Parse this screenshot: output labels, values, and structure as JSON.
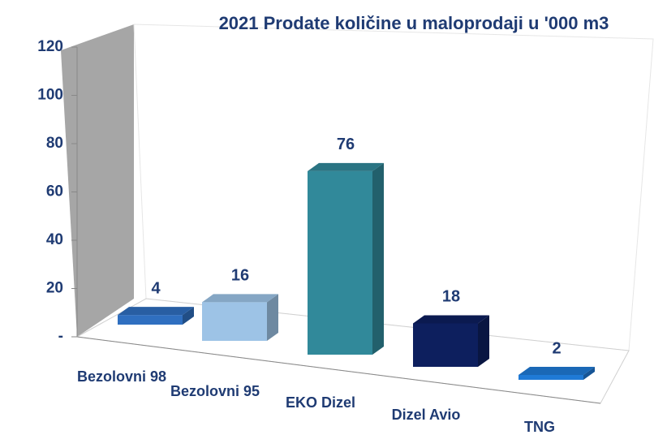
{
  "chart_data": {
    "type": "bar3d",
    "title": "2021 Prodate količine u maloprodaji u '000 m3",
    "categories": [
      "Bezolovni 98",
      "Bezolovni 95",
      "EKO Dizel",
      "Dizel Avio",
      "TNG"
    ],
    "values": [
      4,
      16,
      76,
      18,
      2
    ],
    "colors": [
      "#2f6fc0",
      "#9dc3e6",
      "#31899a",
      "#0d1f5e",
      "#1f7ad6"
    ],
    "ylim": [
      0,
      120
    ],
    "yticks": [
      {
        "value": 0,
        "label": "-"
      },
      20,
      40,
      60,
      80,
      100,
      120
    ]
  }
}
